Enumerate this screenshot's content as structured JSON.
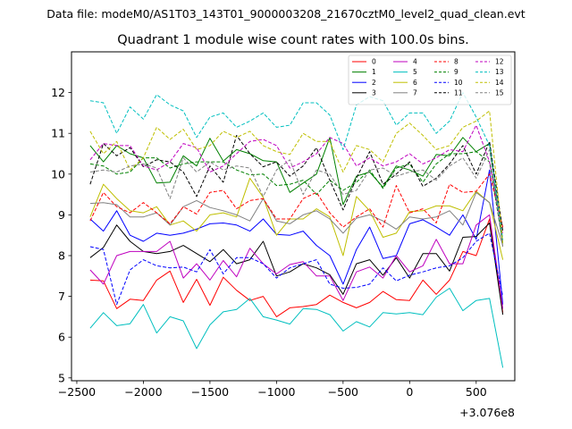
{
  "chart_data": {
    "type": "line",
    "suptitle": "Data file: modeM0/AS1T03_143T01_9000003208_21670cztM0_level2_quad_clean.evt",
    "title": "Quadrant 1 module wise count rates with 100.0s bins.",
    "xlabel": "",
    "ylabel": "",
    "x_offset_label": "+3.076e8",
    "xlim": [
      -2540,
      790
    ],
    "ylim": [
      4.93,
      13.0
    ],
    "xticks": [
      -2500,
      -2000,
      -1500,
      -1000,
      -500,
      0,
      500
    ],
    "xtick_labels": [
      "−2500",
      "−2000",
      "−1500",
      "−1000",
      "−500",
      "0",
      "500"
    ],
    "yticks": [
      5,
      6,
      7,
      8,
      9,
      10,
      11,
      12
    ],
    "ytick_labels": [
      "5",
      "6",
      "7",
      "8",
      "9",
      "10",
      "11",
      "12"
    ],
    "legend_position": "top-right",
    "x": [
      -2400,
      -2300,
      -2200,
      -2100,
      -2000,
      -1900,
      -1800,
      -1700,
      -1600,
      -1500,
      -1400,
      -1300,
      -1200,
      -1100,
      -1000,
      -900,
      -800,
      -700,
      -600,
      -500,
      -400,
      -300,
      -200,
      -100,
      0,
      100,
      200,
      300,
      400,
      500,
      600,
      700
    ],
    "series": [
      {
        "name": "0",
        "color": "#ff0000",
        "dash": "solid",
        "values": [
          7.4,
          7.38,
          6.7,
          6.93,
          6.9,
          7.4,
          7.62,
          6.85,
          7.42,
          6.78,
          7.47,
          7.15,
          6.9,
          7.0,
          6.5,
          6.72,
          6.75,
          6.8,
          7.03,
          6.85,
          6.72,
          6.85,
          7.12,
          6.92,
          6.9,
          7.4,
          7.05,
          7.4,
          8.1,
          8.0,
          8.9,
          6.6
        ]
      },
      {
        "name": "1",
        "color": "#008000",
        "dash": "solid",
        "values": [
          10.7,
          10.3,
          10.7,
          10.5,
          10.4,
          9.78,
          9.8,
          10.45,
          10.2,
          10.88,
          10.32,
          10.6,
          10.5,
          10.33,
          10.3,
          9.55,
          9.78,
          10.0,
          10.9,
          9.25,
          9.95,
          10.05,
          9.68,
          10.2,
          10.1,
          9.95,
          10.48,
          10.45,
          10.9,
          10.55,
          10.75,
          8.3
        ]
      },
      {
        "name": "2",
        "color": "#0000ff",
        "dash": "solid",
        "values": [
          8.9,
          8.6,
          9.1,
          8.5,
          8.35,
          8.55,
          8.5,
          8.55,
          8.65,
          8.78,
          8.8,
          8.75,
          8.6,
          8.9,
          8.52,
          8.5,
          8.6,
          8.25,
          8.0,
          7.3,
          8.15,
          8.7,
          7.93,
          8.0,
          8.78,
          8.88,
          8.7,
          8.5,
          9.0,
          8.4,
          10.1,
          6.8
        ]
      },
      {
        "name": "3",
        "color": "#000000",
        "dash": "solid",
        "values": [
          7.95,
          8.2,
          8.75,
          8.35,
          8.1,
          8.05,
          8.1,
          8.25,
          8.05,
          7.85,
          8.15,
          7.8,
          7.9,
          8.35,
          7.5,
          7.6,
          7.8,
          7.7,
          7.53,
          7.05,
          7.8,
          7.9,
          7.52,
          7.95,
          7.45,
          8.05,
          8.05,
          7.62,
          8.45,
          8.47,
          8.8,
          6.55
        ]
      },
      {
        "name": "4",
        "color": "#bf00bf",
        "dash": "solid",
        "values": [
          7.65,
          7.3,
          8.0,
          8.1,
          8.1,
          8.1,
          8.35,
          7.45,
          7.8,
          7.4,
          7.88,
          7.48,
          8.18,
          7.8,
          7.55,
          7.78,
          7.85,
          7.5,
          7.5,
          6.9,
          7.6,
          7.72,
          7.45,
          8.0,
          7.6,
          7.75,
          8.4,
          7.8,
          7.8,
          8.75,
          9.0,
          6.7
        ]
      },
      {
        "name": "5",
        "color": "#00bfbf",
        "dash": "solid",
        "values": [
          6.22,
          6.6,
          6.28,
          6.33,
          6.8,
          6.1,
          6.5,
          6.4,
          5.72,
          6.3,
          6.62,
          6.68,
          6.95,
          6.5,
          6.42,
          6.32,
          6.7,
          6.68,
          6.55,
          6.15,
          6.38,
          6.25,
          6.6,
          6.57,
          6.6,
          6.55,
          6.98,
          7.2,
          6.65,
          6.9,
          6.95,
          5.25
        ]
      },
      {
        "name": "6",
        "color": "#bfbf00",
        "dash": "solid",
        "values": [
          8.95,
          9.75,
          9.4,
          9.1,
          9.05,
          9.2,
          8.75,
          8.85,
          8.6,
          9.0,
          9.05,
          8.95,
          9.9,
          9.43,
          8.5,
          8.9,
          8.9,
          9.15,
          8.95,
          8.0,
          9.45,
          9.1,
          8.45,
          8.55,
          9.08,
          9.1,
          9.22,
          9.22,
          9.1,
          9.58,
          9.3,
          7.9
        ]
      },
      {
        "name": "7",
        "color": "#808080",
        "dash": "solid",
        "values": [
          9.28,
          9.3,
          9.25,
          8.95,
          8.95,
          9.05,
          8.75,
          9.2,
          9.35,
          9.18,
          9.1,
          9.0,
          8.85,
          9.4,
          8.85,
          8.78,
          9.0,
          9.1,
          8.9,
          8.55,
          8.92,
          9.0,
          8.85,
          8.65,
          8.95,
          8.9,
          8.95,
          9.1,
          8.75,
          9.55,
          9.3,
          8.25
        ]
      },
      {
        "name": "8",
        "color": "#ff0000",
        "dash": "dashed",
        "values": [
          8.85,
          9.55,
          9.2,
          9.05,
          9.3,
          9.05,
          8.78,
          9.2,
          9.02,
          9.55,
          9.6,
          9.15,
          9.35,
          9.4,
          8.9,
          8.9,
          9.4,
          9.55,
          9.05,
          8.7,
          8.95,
          9.15,
          8.7,
          9.72,
          9.05,
          9.15,
          8.8,
          9.75,
          9.55,
          9.58,
          10.0,
          8.7
        ]
      },
      {
        "name": "9",
        "color": "#008000",
        "dash": "dashed",
        "values": [
          10.25,
          10.2,
          10.0,
          10.05,
          10.4,
          10.4,
          10.15,
          10.25,
          10.3,
          10.3,
          10.3,
          10.1,
          9.98,
          10.0,
          9.72,
          9.75,
          9.85,
          9.5,
          9.85,
          9.6,
          9.8,
          10.1,
          9.65,
          10.15,
          10.25,
          9.8,
          10.25,
          10.5,
          10.5,
          10.55,
          10.3,
          8.3
        ]
      },
      {
        "name": "10",
        "color": "#0000ff",
        "dash": "dashed",
        "values": [
          8.22,
          8.15,
          6.8,
          7.65,
          7.9,
          7.75,
          7.7,
          7.72,
          7.6,
          8.15,
          7.55,
          7.95,
          7.95,
          7.8,
          7.45,
          7.7,
          7.8,
          7.9,
          7.3,
          7.2,
          7.22,
          7.3,
          7.7,
          7.38,
          7.52,
          7.6,
          7.7,
          7.75,
          7.95,
          8.35,
          8.55,
          7.0
        ]
      },
      {
        "name": "11",
        "color": "#000000",
        "dash": "dashed",
        "values": [
          9.75,
          10.75,
          10.45,
          10.65,
          10.18,
          10.35,
          10.3,
          10.05,
          9.45,
          10.2,
          9.8,
          10.95,
          10.5,
          10.18,
          10.3,
          9.95,
          10.2,
          10.65,
          9.85,
          9.12,
          9.9,
          10.55,
          9.75,
          10.0,
          10.3,
          9.7,
          9.9,
          10.25,
          10.7,
          10.0,
          10.8,
          8.6
        ]
      },
      {
        "name": "12",
        "color": "#bf00bf",
        "dash": "dashed",
        "values": [
          10.35,
          10.75,
          10.7,
          10.7,
          10.2,
          10.1,
          10.3,
          10.75,
          10.65,
          10.05,
          10.2,
          10.5,
          10.8,
          10.85,
          10.7,
          10.15,
          10.3,
          10.5,
          10.9,
          10.75,
          10.2,
          10.4,
          10.2,
          10.3,
          10.5,
          10.25,
          10.4,
          10.6,
          10.55,
          11.2,
          10.3,
          8.5
        ]
      },
      {
        "name": "13",
        "color": "#00bfbf",
        "dash": "dashed",
        "values": [
          11.8,
          11.75,
          11.0,
          11.65,
          11.35,
          11.95,
          11.7,
          11.55,
          10.9,
          11.4,
          11.5,
          11.15,
          11.3,
          11.5,
          11.15,
          11.2,
          11.75,
          11.75,
          11.45,
          10.6,
          11.7,
          11.9,
          11.8,
          11.2,
          11.5,
          11.5,
          11.0,
          11.3,
          12.0,
          11.4,
          10.7,
          8.4
        ]
      },
      {
        "name": "14",
        "color": "#bfbf00",
        "dash": "dashed",
        "values": [
          11.05,
          10.5,
          10.8,
          10.1,
          10.4,
          11.15,
          10.85,
          11.1,
          10.6,
          10.7,
          11.05,
          10.9,
          11.05,
          10.7,
          10.55,
          10.48,
          11.0,
          10.8,
          10.8,
          10.05,
          10.7,
          10.6,
          10.3,
          11.0,
          11.25,
          10.95,
          10.6,
          10.7,
          11.15,
          11.3,
          11.55,
          8.3
        ]
      },
      {
        "name": "15",
        "color": "#808080",
        "dash": "dashed",
        "values": [
          10.05,
          10.1,
          10.05,
          10.2,
          10.25,
          10.15,
          9.4,
          10.4,
          10.05,
          10.3,
          10.1,
          10.2,
          10.15,
          9.45,
          10.1,
          10.35,
          9.5,
          10.1,
          10.0,
          9.5,
          9.6,
          10.1,
          10.15,
          9.95,
          10.05,
          10.1,
          9.85,
          10.2,
          10.4,
          9.9,
          10.6,
          8.2
        ]
      }
    ]
  }
}
